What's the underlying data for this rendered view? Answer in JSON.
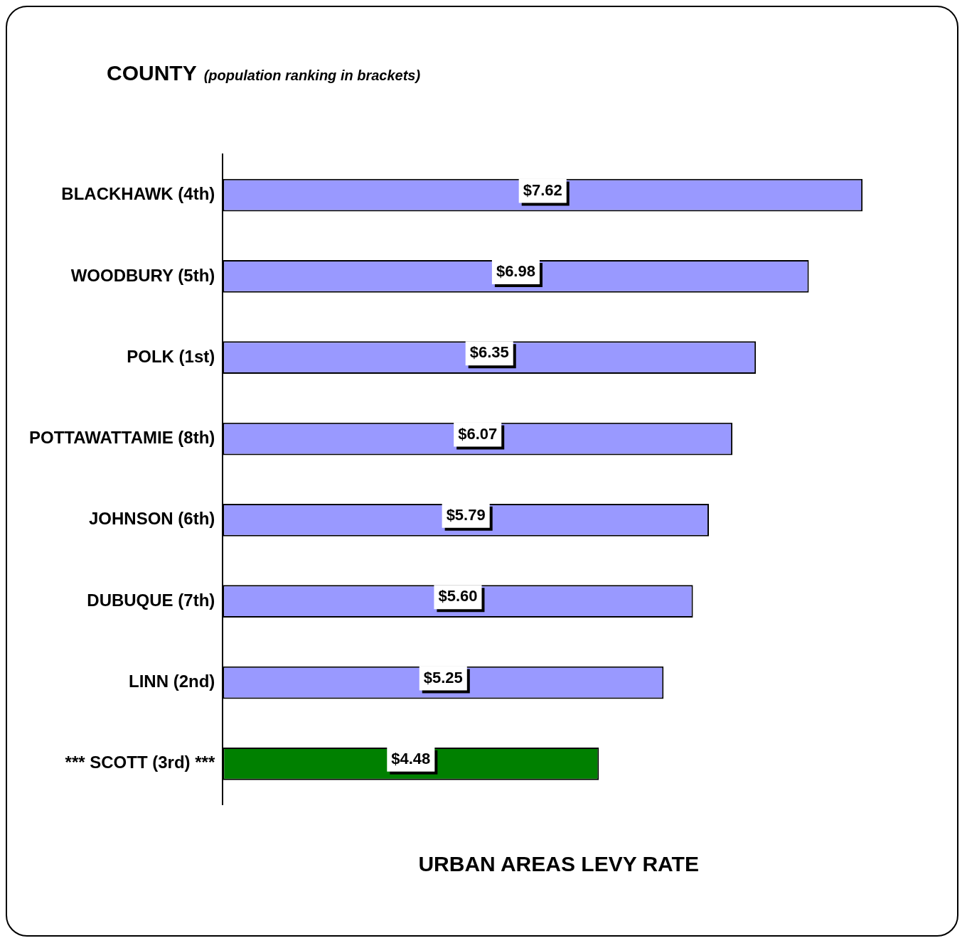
{
  "chart_data": {
    "type": "bar",
    "orientation": "horizontal",
    "title": "COUNTY",
    "subtitle": "(population ranking in brackets)",
    "xlabel": "URBAN AREAS LEVY RATE",
    "categories": [
      "BLACKHAWK (4th)",
      "WOODBURY (5th)",
      "POLK (1st)",
      "POTTAWATTAMIE (8th)",
      "JOHNSON (6th)",
      "DUBUQUE (7th)",
      "LINN (2nd)",
      "*** SCOTT (3rd) ***"
    ],
    "values": [
      7.62,
      6.98,
      6.35,
      6.07,
      5.79,
      5.6,
      5.25,
      4.48
    ],
    "value_labels": [
      "$7.62",
      "$6.98",
      "$6.35",
      "$6.07",
      "$5.79",
      "$5.60",
      "$5.25",
      "$4.48"
    ],
    "colors": [
      "#9999ff",
      "#9999ff",
      "#9999ff",
      "#9999ff",
      "#9999ff",
      "#9999ff",
      "#9999ff",
      "#008000"
    ],
    "legend": false,
    "grid": false
  }
}
